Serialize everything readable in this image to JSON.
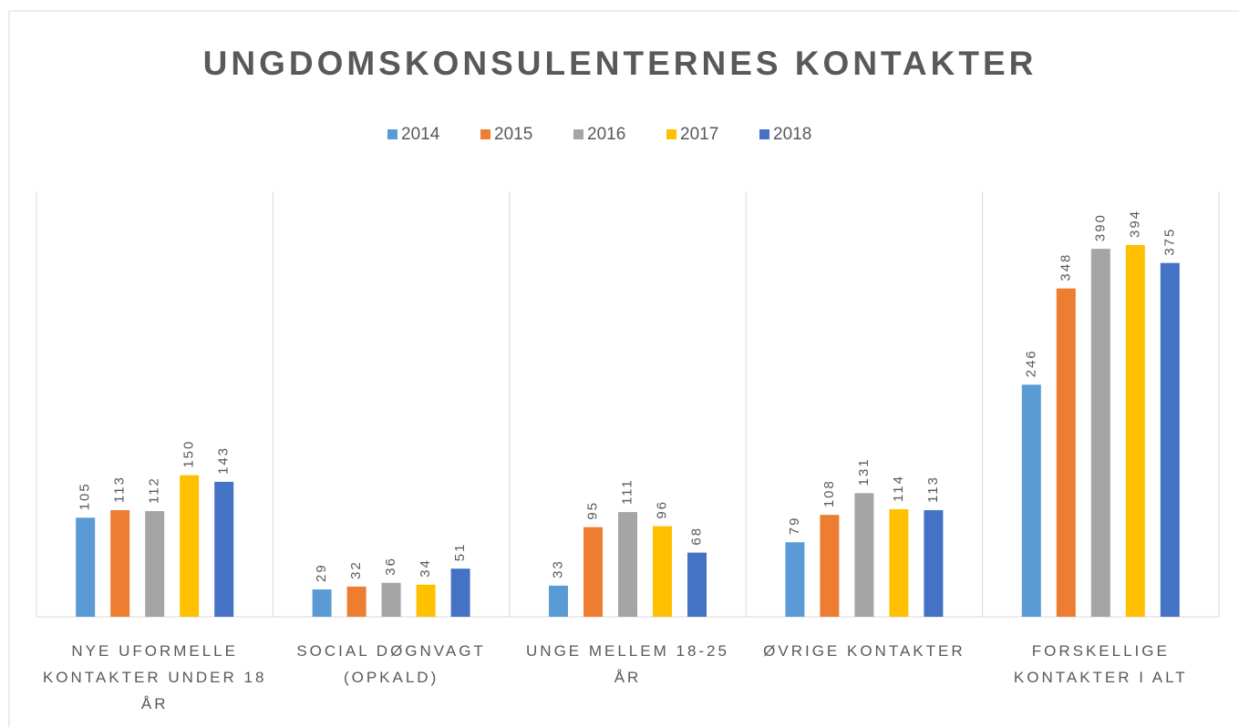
{
  "chart_data": {
    "type": "bar",
    "title": "UNGDOMSKONSULENTERNES KONTAKTER",
    "categories": [
      "NYE UFORMELLE KONTAKTER UNDER 18 ÅR",
      "SOCIAL DØGNVAGT (OPKALD)",
      "UNGE MELLEM 18-25 ÅR",
      "ØVRIGE KONTAKTER",
      "FORSKELLIGE KONTAKTER I ALT"
    ],
    "series": [
      {
        "name": "2014",
        "color": "#5b9bd5",
        "values": [
          105,
          29,
          33,
          79,
          246
        ]
      },
      {
        "name": "2015",
        "color": "#ed7d31",
        "values": [
          113,
          32,
          95,
          108,
          348
        ]
      },
      {
        "name": "2016",
        "color": "#a5a5a5",
        "values": [
          112,
          36,
          111,
          131,
          390
        ]
      },
      {
        "name": "2017",
        "color": "#ffc000",
        "values": [
          150,
          34,
          96,
          114,
          394
        ]
      },
      {
        "name": "2018",
        "color": "#4472c4",
        "values": [
          143,
          51,
          68,
          113,
          375
        ]
      }
    ],
    "legend": "top"
  }
}
